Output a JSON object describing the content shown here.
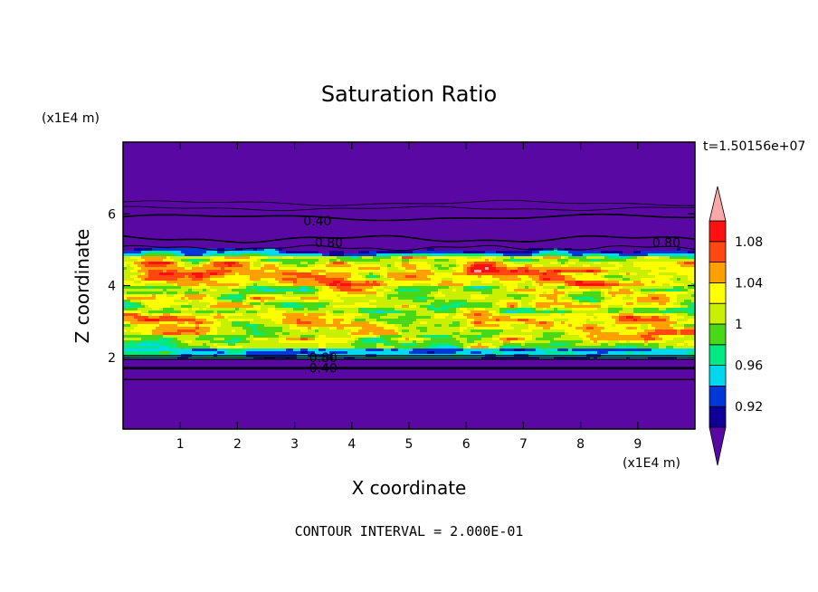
{
  "chart_data": {
    "type": "heatmap",
    "title": "Saturation Ratio",
    "xlabel": "X coordinate",
    "ylabel": "Z coordinate",
    "x_unit": "(x1E4 m)",
    "y_unit": "(x1E4 m)",
    "time_label": "t=1.50156e+07",
    "footer": "CONTOUR INTERVAL = 2.000E-01",
    "xlim": [
      0,
      10
    ],
    "ylim": [
      0,
      8
    ],
    "x_ticks": [
      "1",
      "2",
      "3",
      "4",
      "5",
      "6",
      "7",
      "8",
      "9"
    ],
    "y_ticks": [
      "2",
      "4",
      "6"
    ],
    "contour_labels": [
      {
        "text": "0.40",
        "x": 3.4,
        "z": 5.8
      },
      {
        "text": "0.80",
        "x": 3.6,
        "z": 5.2
      },
      {
        "text": "0.80",
        "x": 9.5,
        "z": 5.2
      },
      {
        "text": "0.80",
        "x": 3.5,
        "z": 2.0
      },
      {
        "text": "0.40",
        "x": 3.5,
        "z": 1.7
      }
    ],
    "colorbar": {
      "levels": [
        0.9,
        0.92,
        0.94,
        0.96,
        0.98,
        1.0,
        1.02,
        1.04,
        1.06,
        1.08,
        1.1
      ],
      "labels": [
        "0.92",
        "0.96",
        "1",
        "1.04",
        "1.08"
      ],
      "colors": [
        "#5a08a4",
        "#0e0096",
        "#0038d8",
        "#00d8ee",
        "#00ea84",
        "#48d818",
        "#c8f000",
        "#ffff00",
        "#ffa000",
        "#ff4810",
        "#ff1010",
        "#f8a8a8"
      ]
    }
  }
}
